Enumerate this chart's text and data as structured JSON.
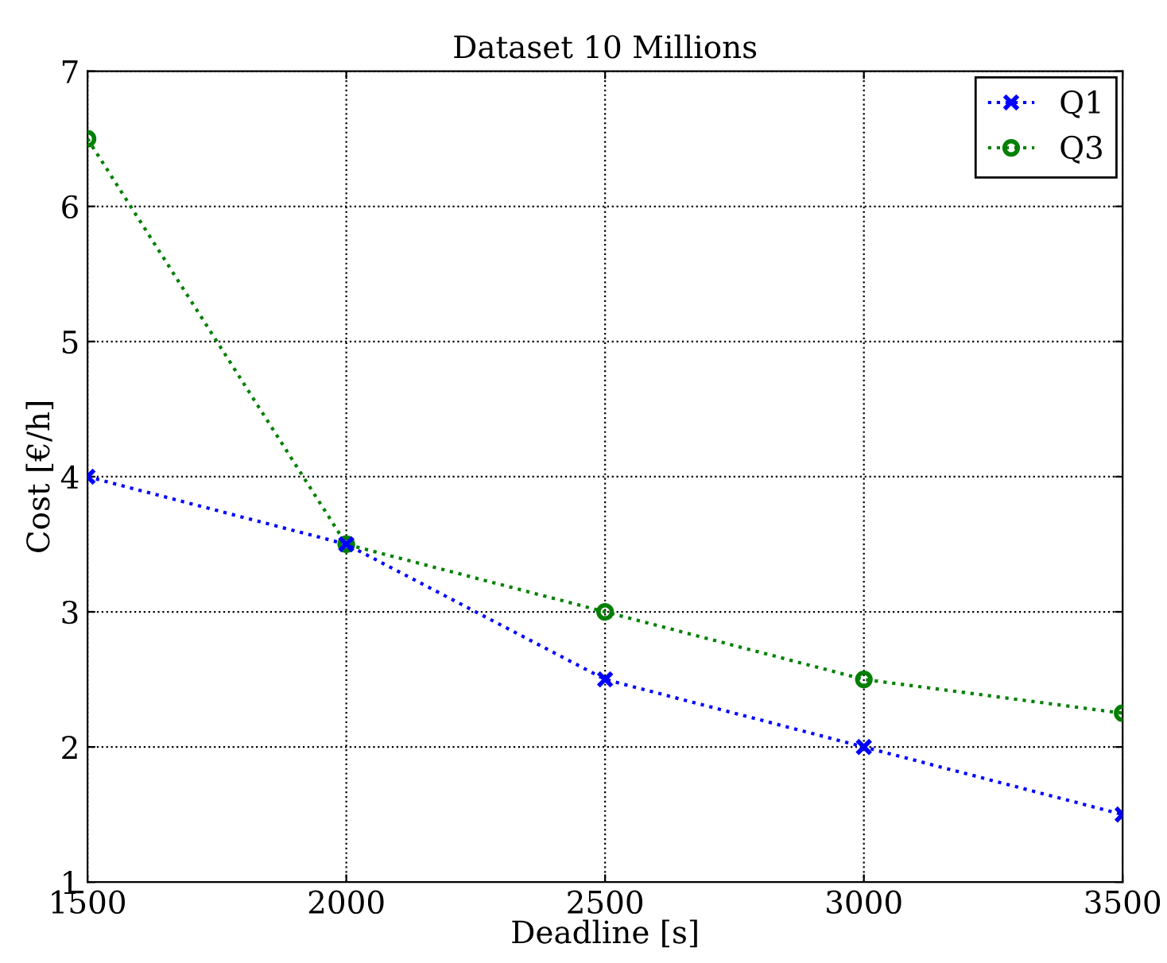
{
  "chart_data": {
    "type": "line",
    "title": "Dataset 10 Millions",
    "xlabel": "Deadline [s]",
    "ylabel": "Cost [€/h]",
    "x": [
      1500,
      2000,
      2500,
      3000,
      3500
    ],
    "series": [
      {
        "name": "Q1",
        "color": "#0000ff",
        "marker": "cross",
        "values": [
          4,
          3.5,
          2.5,
          2,
          1.5
        ]
      },
      {
        "name": "Q3",
        "color": "#008000",
        "marker": "circle",
        "values": [
          6.5,
          3.5,
          3,
          2.5,
          2.25
        ]
      }
    ],
    "xlim": [
      1500,
      3500
    ],
    "xticks": [
      1500,
      2000,
      2500,
      3000,
      3500
    ],
    "ylim": [
      1,
      7
    ],
    "yticks": [
      1,
      2,
      3,
      4,
      5,
      6,
      7
    ],
    "grid": true,
    "legend": "top right",
    "line_style": "dotted"
  }
}
